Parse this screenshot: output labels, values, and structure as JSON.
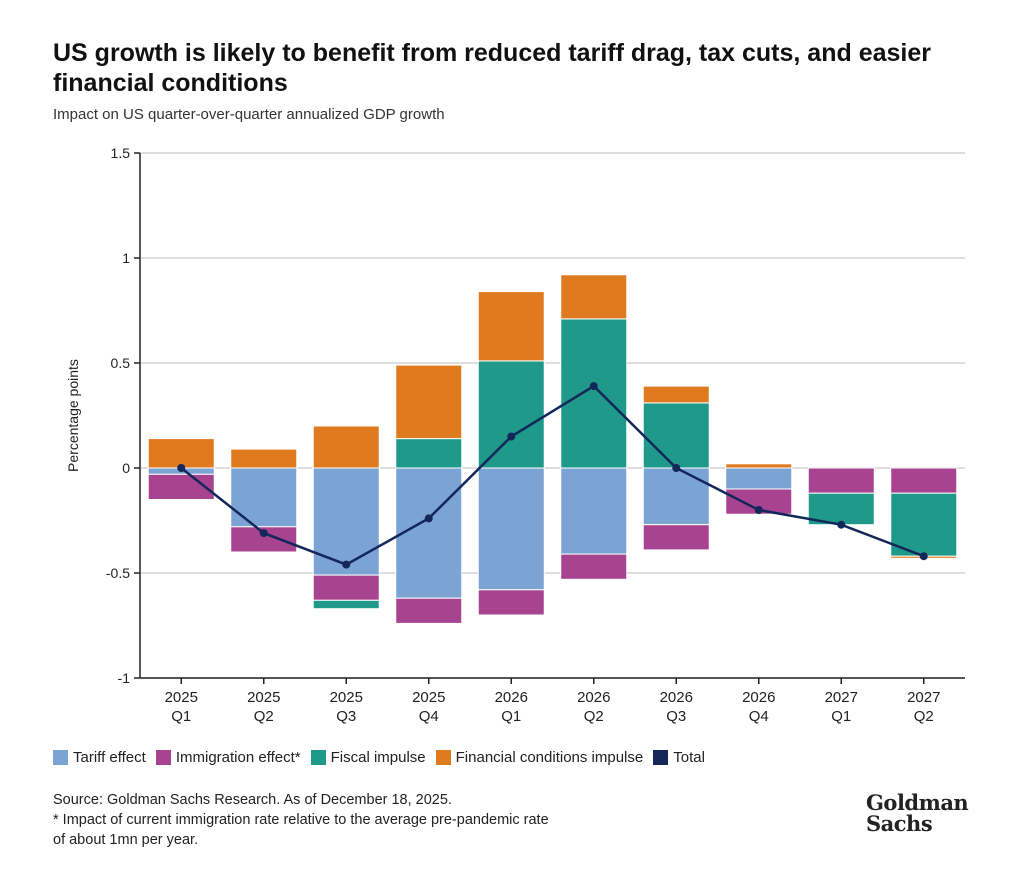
{
  "chart_data": {
    "type": "bar",
    "stacked": true,
    "title": "US growth is likely to benefit from reduced tariff drag, tax cuts, and easier financial conditions",
    "subtitle": "Impact on US quarter-over-quarter annualized GDP growth",
    "ylabel": "Percentage points",
    "xlabel": "",
    "ylim": [
      -1,
      1.5
    ],
    "yticks": [
      1.5,
      1,
      0.5,
      0,
      -0.5,
      -1
    ],
    "ytick_labels": [
      "1.5",
      "1",
      "0.5",
      "0",
      "-0.5",
      "-1"
    ],
    "grid": true,
    "categories": [
      [
        "2025",
        "Q1"
      ],
      [
        "2025",
        "Q2"
      ],
      [
        "2025",
        "Q3"
      ],
      [
        "2025",
        "Q4"
      ],
      [
        "2026",
        "Q1"
      ],
      [
        "2026",
        "Q2"
      ],
      [
        "2026",
        "Q3"
      ],
      [
        "2026",
        "Q4"
      ],
      [
        "2027",
        "Q1"
      ],
      [
        "2027",
        "Q2"
      ]
    ],
    "series": [
      {
        "name": "Tariff effect",
        "color": "#7ba3d4",
        "values": [
          -0.03,
          -0.28,
          -0.51,
          -0.62,
          -0.58,
          -0.41,
          -0.27,
          -0.1,
          0,
          0
        ]
      },
      {
        "name": "Immigration effect*",
        "color": "#a8438f",
        "values": [
          -0.12,
          -0.12,
          -0.12,
          -0.12,
          -0.12,
          -0.12,
          -0.12,
          -0.12,
          -0.12,
          -0.12
        ]
      },
      {
        "name": "Fiscal impulse",
        "color": "#1f9a8a",
        "values": [
          0,
          0,
          -0.04,
          0.14,
          0.51,
          0.71,
          0.31,
          0,
          -0.15,
          -0.3
        ]
      },
      {
        "name": "Financial conditions impulse",
        "color": "#e07a1f",
        "values": [
          0.14,
          0.09,
          0.2,
          0.35,
          0.33,
          0.21,
          0.08,
          0.02,
          0,
          -0.01
        ]
      }
    ],
    "total": {
      "name": "Total",
      "color": "#13275a",
      "values": [
        0,
        -0.31,
        -0.46,
        -0.24,
        0.15,
        0.39,
        0,
        -0.2,
        -0.27,
        -0.42
      ]
    },
    "legend_position": "bottom"
  },
  "notes": {
    "source": "Source: Goldman Sachs Research. As of December 18, 2025.",
    "footnote1": "* Impact of current immigration rate relative to the average pre-pandemic rate",
    "footnote2": "of about 1mn per year."
  },
  "logo": {
    "line1": "Goldman",
    "line2": "Sachs"
  }
}
